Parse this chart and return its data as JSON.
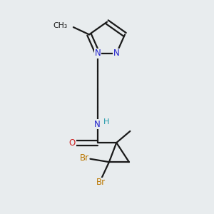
{
  "background_color": "#e8ecee",
  "bond_color": "#1a1a1a",
  "N_color": "#2020cc",
  "NH_color": "#2099aa",
  "O_color": "#cc2020",
  "Br_color": "#bb7700",
  "figsize": [
    3.0,
    3.0
  ],
  "dpi": 100,
  "xlim": [
    0,
    10
  ],
  "ylim": [
    0,
    10
  ]
}
